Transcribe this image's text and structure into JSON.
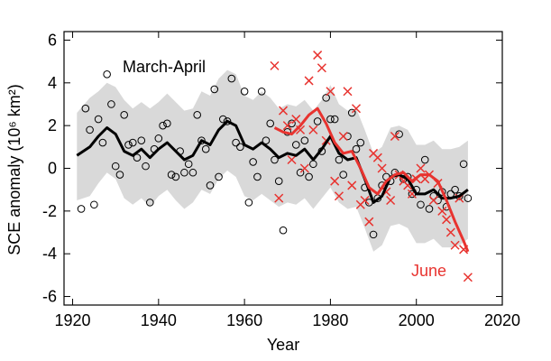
{
  "chart_data": {
    "type": "scatter",
    "x_label": "Year",
    "y_label": "SCE anomaly (10⁶ km²)",
    "xlim": [
      1918,
      2020
    ],
    "xticks": [
      1920,
      1940,
      1960,
      1980,
      2000,
      2020
    ],
    "ylim": [
      -6.4,
      6.4
    ],
    "yticks": [
      -6,
      -4,
      -2,
      0,
      2,
      4,
      6
    ],
    "band_color": "#d9d9d9",
    "series": [
      {
        "name": "March-April",
        "color": "#000000",
        "marker": "circle",
        "x": [
          1922,
          1923,
          1924,
          1925,
          1926,
          1927,
          1928,
          1929,
          1930,
          1931,
          1932,
          1933,
          1934,
          1935,
          1936,
          1937,
          1938,
          1939,
          1940,
          1941,
          1942,
          1943,
          1944,
          1945,
          1946,
          1947,
          1948,
          1949,
          1950,
          1951,
          1952,
          1953,
          1954,
          1955,
          1956,
          1957,
          1958,
          1959,
          1960,
          1961,
          1962,
          1963,
          1964,
          1965,
          1966,
          1967,
          1968,
          1969,
          1970,
          1971,
          1972,
          1973,
          1974,
          1975,
          1976,
          1977,
          1978,
          1979,
          1980,
          1981,
          1982,
          1983,
          1984,
          1985,
          1986,
          1987,
          1988,
          1989,
          1990,
          1991,
          1992,
          1993,
          1994,
          1995,
          1996,
          1997,
          1998,
          1999,
          2000,
          2001,
          2002,
          2003,
          2004,
          2005,
          2006,
          2007,
          2008,
          2009,
          2010,
          2011,
          2012
        ],
        "values": [
          -1.9,
          2.8,
          1.8,
          -1.7,
          2.3,
          1.2,
          4.4,
          3.0,
          0.1,
          -0.3,
          2.5,
          1.1,
          1.2,
          0.5,
          1.3,
          0.1,
          -1.6,
          0.9,
          1.4,
          2.0,
          2.1,
          -0.3,
          -0.4,
          0.8,
          -0.2,
          0.2,
          -0.2,
          2.5,
          1.3,
          0.9,
          -0.8,
          3.7,
          -0.4,
          2.3,
          2.2,
          4.2,
          1.2,
          1.0,
          3.6,
          -1.6,
          0.3,
          -0.4,
          3.6,
          1.3,
          2.1,
          0.4,
          -0.6,
          -2.9,
          1.7,
          2.1,
          1.1,
          -0.2,
          1.3,
          -0.4,
          0.2,
          2.2,
          0.8,
          3.3,
          2.3,
          2.3,
          0.4,
          -0.3,
          1.5,
          2.6,
          0.9,
          1.2,
          -0.9,
          -1.6,
          -3.1,
          -1.4,
          -0.8,
          -0.4,
          -0.6,
          -0.2,
          1.6,
          -0.5,
          -0.4,
          -1.2,
          -1.0,
          -1.7,
          0.4,
          -1.9,
          -1.3,
          -1.5,
          -1.1,
          -1.8,
          -1.2,
          -1.0,
          -1.3,
          0.2,
          -1.4
        ],
        "smooth_x": [
          1921,
          1924,
          1926,
          1928,
          1930,
          1932,
          1934,
          1936,
          1938,
          1940,
          1942,
          1944,
          1946,
          1948,
          1950,
          1952,
          1954,
          1956,
          1958,
          1960,
          1962,
          1964,
          1966,
          1968,
          1970,
          1972,
          1974,
          1976,
          1978,
          1980,
          1982,
          1984,
          1986,
          1988,
          1990,
          1992,
          1994,
          1996,
          1998,
          2000,
          2002,
          2004,
          2006,
          2008,
          2010,
          2012
        ],
        "smooth": [
          0.6,
          1.0,
          1.5,
          1.9,
          1.6,
          0.8,
          0.6,
          0.9,
          0.5,
          0.9,
          1.2,
          0.8,
          0.4,
          0.6,
          1.3,
          1.1,
          1.8,
          2.2,
          2.0,
          1.1,
          0.9,
          1.2,
          0.9,
          0.5,
          0.7,
          0.6,
          0.9,
          0.4,
          0.9,
          1.5,
          0.7,
          0.4,
          0.5,
          -0.5,
          -1.6,
          -1.3,
          -0.4,
          -0.3,
          -0.5,
          -1.2,
          -1.2,
          -1.0,
          -1.4,
          -1.4,
          -1.3,
          -1.0
        ],
        "band_upper": [
          2.6,
          3.3,
          3.6,
          4.0,
          3.8,
          3.2,
          2.8,
          3.1,
          2.8,
          3.1,
          3.5,
          3.1,
          2.7,
          2.8,
          3.6,
          3.4,
          4.2,
          4.6,
          4.4,
          3.4,
          3.2,
          3.6,
          3.3,
          2.8,
          3.0,
          2.9,
          3.2,
          2.7,
          3.2,
          3.9,
          3.0,
          2.7,
          2.8,
          1.8,
          0.7,
          1.0,
          1.9,
          2.0,
          1.8,
          1.1,
          1.1,
          1.3,
          0.9,
          0.9,
          1.0,
          1.3
        ],
        "band_lower": [
          -1.5,
          -1.3,
          -0.7,
          -0.2,
          -0.5,
          -1.4,
          -1.7,
          -1.4,
          -1.8,
          -1.3,
          -1.0,
          -1.5,
          -1.9,
          -1.6,
          -1.0,
          -1.2,
          -0.5,
          -0.1,
          -0.4,
          -1.3,
          -1.5,
          -1.2,
          -1.5,
          -1.8,
          -1.6,
          -1.7,
          -1.4,
          -1.9,
          -1.4,
          -0.9,
          -1.6,
          -1.9,
          -1.8,
          -2.8,
          -3.9,
          -3.6,
          -2.7,
          -2.6,
          -2.8,
          -3.5,
          -3.5,
          -3.3,
          -3.7,
          -3.7,
          -3.6,
          -3.3
        ]
      },
      {
        "name": "June",
        "color": "#e8332f",
        "marker": "x",
        "x": [
          1967,
          1968,
          1969,
          1970,
          1971,
          1972,
          1973,
          1974,
          1975,
          1976,
          1977,
          1978,
          1979,
          1980,
          1981,
          1982,
          1983,
          1984,
          1985,
          1986,
          1987,
          1988,
          1989,
          1990,
          1991,
          1992,
          1993,
          1994,
          1995,
          1996,
          1997,
          1998,
          1999,
          2000,
          2001,
          2002,
          2003,
          2004,
          2005,
          2006,
          2007,
          2008,
          2009,
          2010,
          2011,
          2012
        ],
        "values": [
          4.8,
          -1.4,
          2.7,
          2.0,
          0.4,
          2.3,
          1.8,
          0.0,
          4.1,
          1.8,
          5.3,
          4.7,
          1.3,
          3.6,
          -0.6,
          -1.3,
          1.5,
          3.6,
          -0.8,
          2.8,
          -1.7,
          -1.5,
          -2.5,
          0.7,
          0.5,
          0.0,
          -1.1,
          -1.5,
          1.5,
          -0.3,
          -0.6,
          -0.8,
          -1.2,
          -0.5,
          0.0,
          -0.5,
          -0.3,
          -1.5,
          -0.7,
          -2.0,
          -2.4,
          -3.0,
          -3.6,
          -1.4,
          -3.8,
          -5.1
        ],
        "smooth_x": [
          1967,
          1969,
          1971,
          1973,
          1975,
          1977,
          1979,
          1981,
          1983,
          1985,
          1987,
          1989,
          1991,
          1993,
          1995,
          1997,
          1999,
          2001,
          2003,
          2005,
          2007,
          2009,
          2011,
          2012
        ],
        "smooth": [
          1.9,
          1.7,
          1.6,
          2.0,
          2.5,
          2.8,
          2.1,
          1.2,
          0.7,
          0.8,
          0.0,
          -0.9,
          -1.2,
          -0.6,
          -0.3,
          -0.2,
          -0.6,
          -0.3,
          -0.3,
          -0.6,
          -1.5,
          -2.5,
          -3.4,
          -3.9
        ]
      }
    ]
  }
}
